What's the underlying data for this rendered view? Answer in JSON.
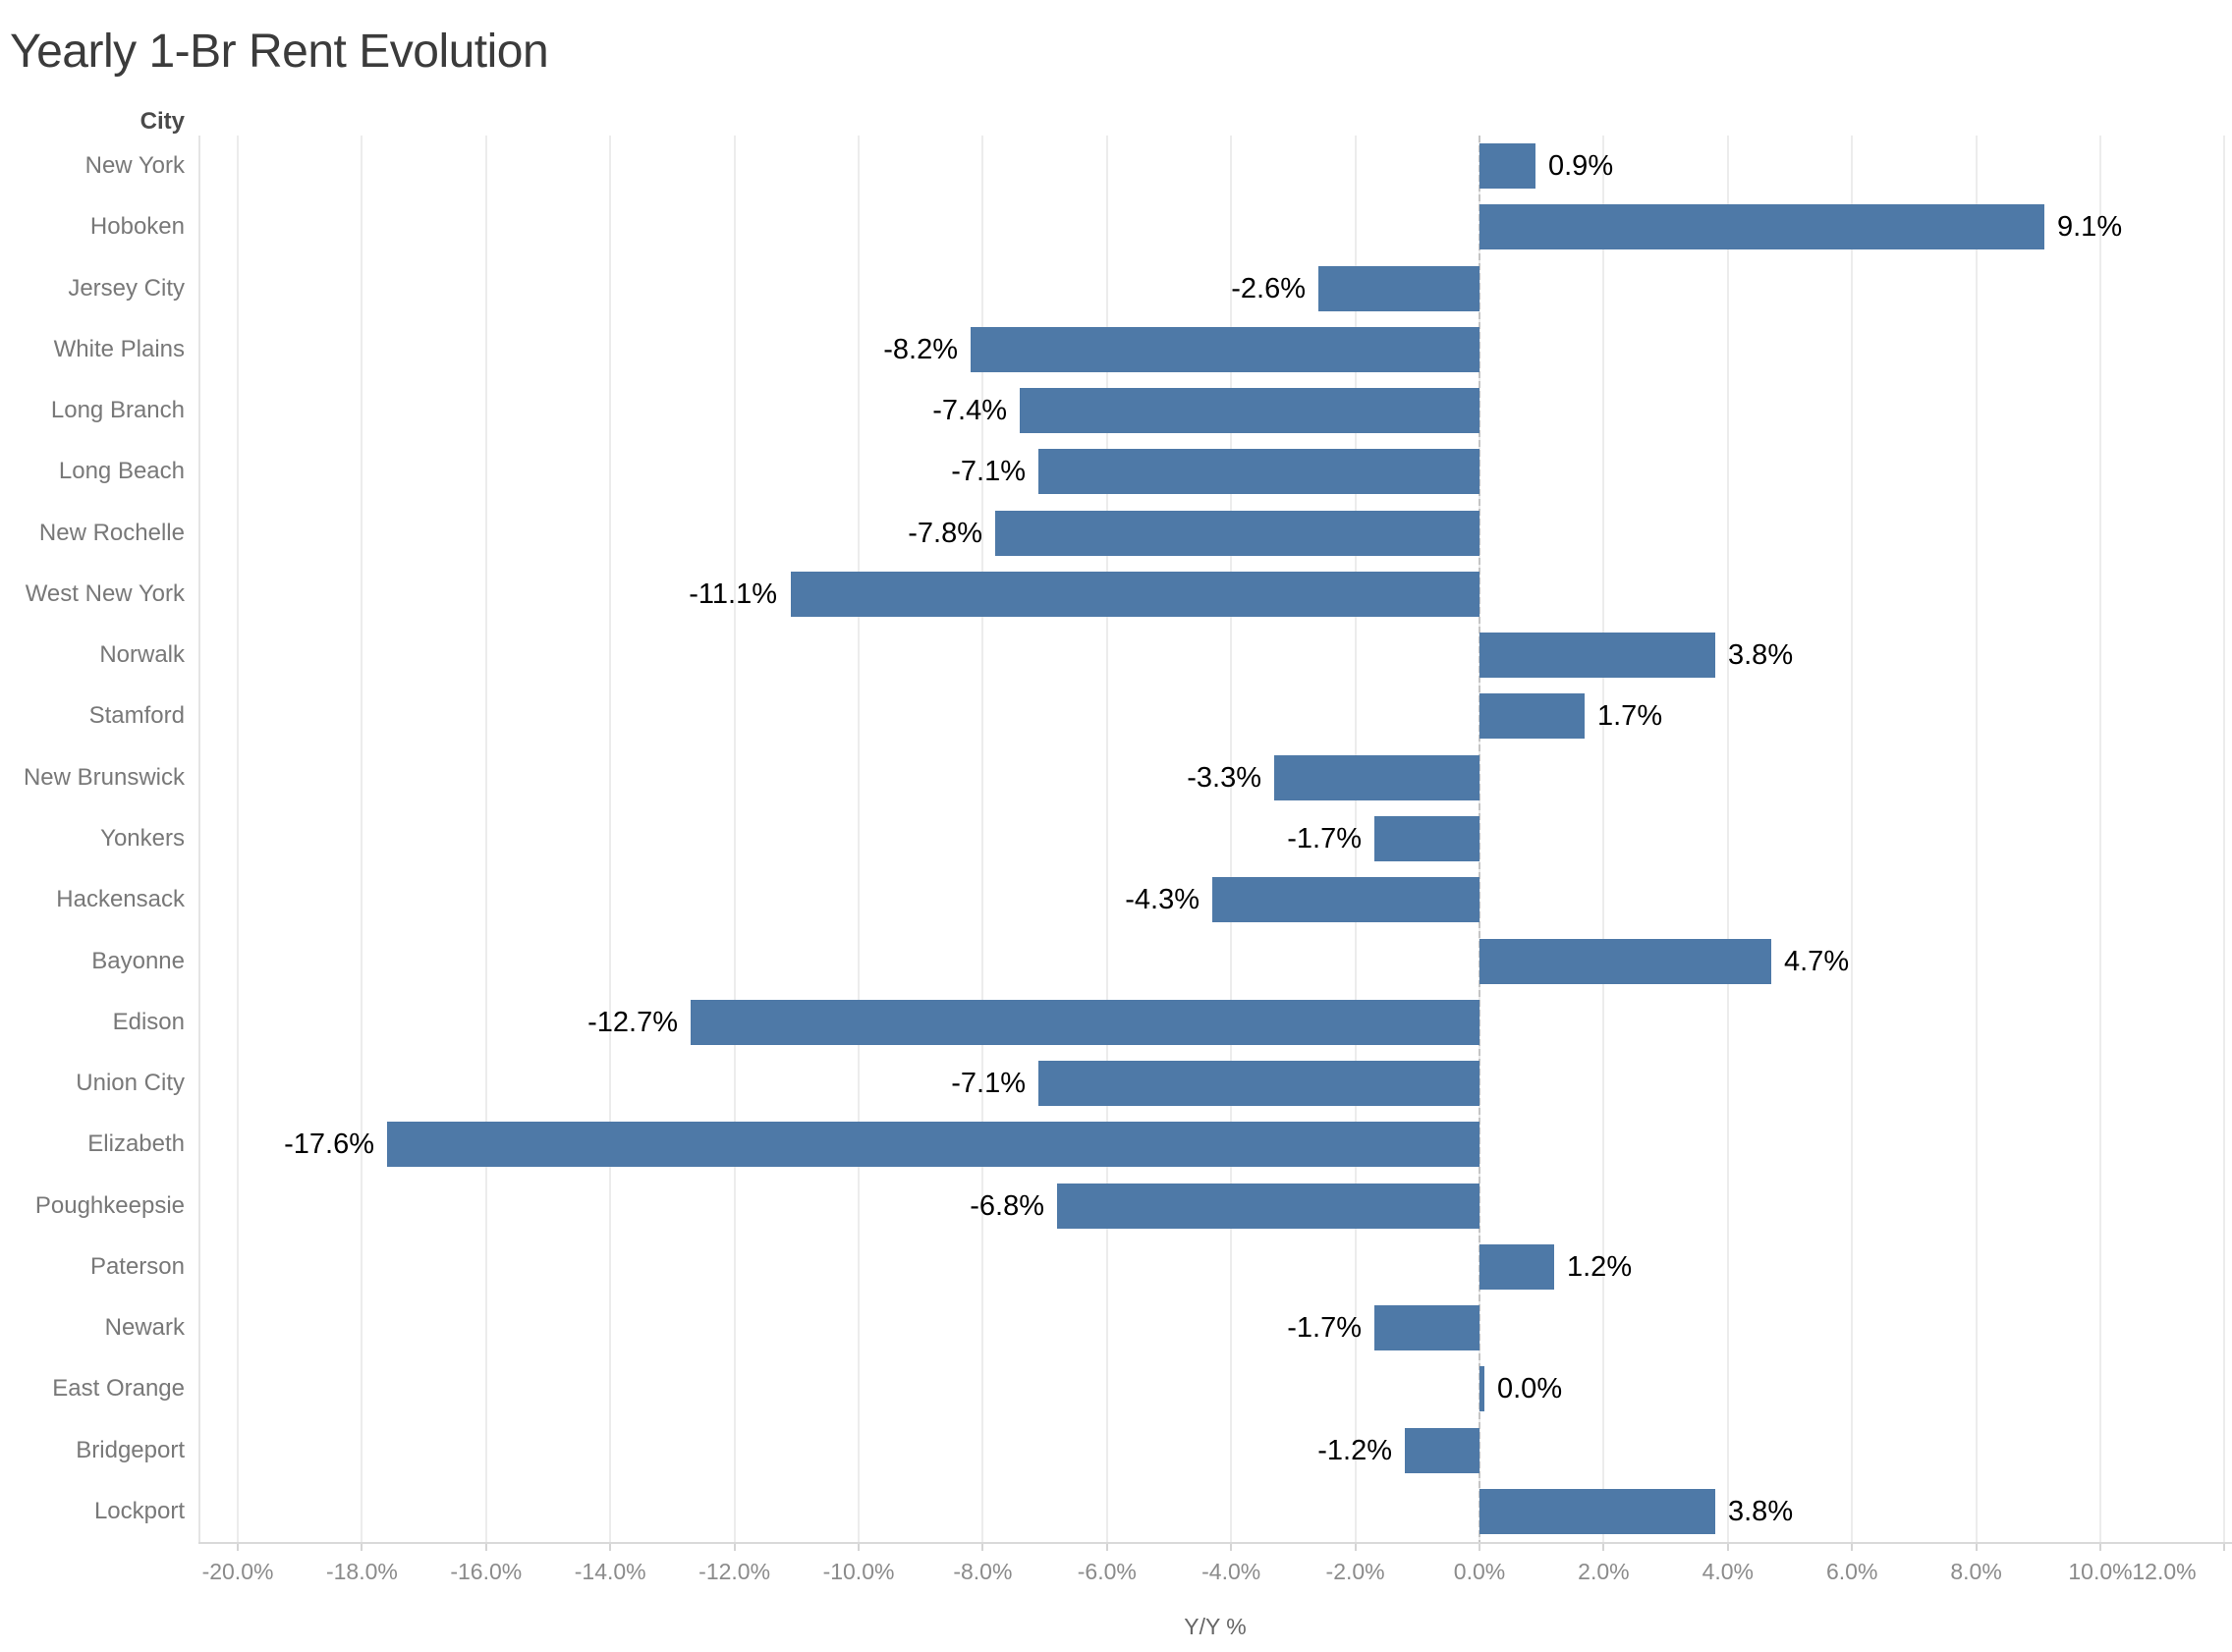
{
  "title": "Yearly 1-Br Rent Evolution",
  "column_header": "City",
  "x_axis": {
    "label": "Y/Y %",
    "ticks": [
      {
        "value": -20,
        "label": "-20.0%"
      },
      {
        "value": -18,
        "label": "-18.0%"
      },
      {
        "value": -16,
        "label": "-16.0%"
      },
      {
        "value": -14,
        "label": "-14.0%"
      },
      {
        "value": -12,
        "label": "-12.0%"
      },
      {
        "value": -10,
        "label": "-10.0%"
      },
      {
        "value": -8,
        "label": "-8.0%"
      },
      {
        "value": -6,
        "label": "-6.0%"
      },
      {
        "value": -4,
        "label": "-4.0%"
      },
      {
        "value": -2,
        "label": "-2.0%"
      },
      {
        "value": 0,
        "label": "0.0%"
      },
      {
        "value": 2,
        "label": "2.0%"
      },
      {
        "value": 4,
        "label": "4.0%"
      },
      {
        "value": 6,
        "label": "6.0%"
      },
      {
        "value": 8,
        "label": "8.0%"
      },
      {
        "value": 10,
        "label": "10.0%"
      },
      {
        "value": 12,
        "label": "12.0%"
      }
    ]
  },
  "style": {
    "bar_color": "#4e79a7",
    "grid_color": "#ececec",
    "zero_line_color": "#c4c4c4",
    "axis_line_color": "#d9d9d9",
    "tick_mark_color": "#d4d4d4",
    "panel_border_color": "#e4e4e4",
    "city_label_color": "#787878",
    "tick_label_color": "#8b8b8b",
    "axis_title_color": "#666666",
    "value_label_color": "#000000"
  },
  "chart_data": {
    "type": "bar",
    "orientation": "horizontal",
    "title": "Yearly 1-Br Rent Evolution",
    "xlabel": "Y/Y %",
    "ylabel": "City",
    "xlim": [
      -20.6,
      12.1
    ],
    "grid": true,
    "legend": "none",
    "zero_line": "dashed",
    "categories": [
      "New York",
      "Hoboken",
      "Jersey City",
      "White Plains",
      "Long Branch",
      "Long Beach",
      "New Rochelle",
      "West New York",
      "Norwalk",
      "Stamford",
      "New Brunswick",
      "Yonkers",
      "Hackensack",
      "Bayonne",
      "Edison",
      "Union City",
      "Elizabeth",
      "Poughkeepsie",
      "Paterson",
      "Newark",
      "East Orange",
      "Bridgeport",
      "Lockport"
    ],
    "values": [
      0.9,
      9.1,
      -2.6,
      -8.2,
      -7.4,
      -7.1,
      -7.8,
      -11.1,
      3.8,
      1.7,
      -3.3,
      -1.7,
      -4.3,
      4.7,
      -12.7,
      -7.1,
      -17.6,
      -6.8,
      1.2,
      -1.7,
      0.0,
      -1.2,
      3.8
    ],
    "value_labels": [
      "0.9%",
      "9.1%",
      "-2.6%",
      "-8.2%",
      "-7.4%",
      "-7.1%",
      "-7.8%",
      "-11.1%",
      "3.8%",
      "1.7%",
      "-3.3%",
      "-1.7%",
      "-4.3%",
      "4.7%",
      "-12.7%",
      "-7.1%",
      "-17.6%",
      "-6.8%",
      "1.2%",
      "-1.7%",
      "0.0%",
      "-1.2%",
      "3.8%"
    ]
  }
}
